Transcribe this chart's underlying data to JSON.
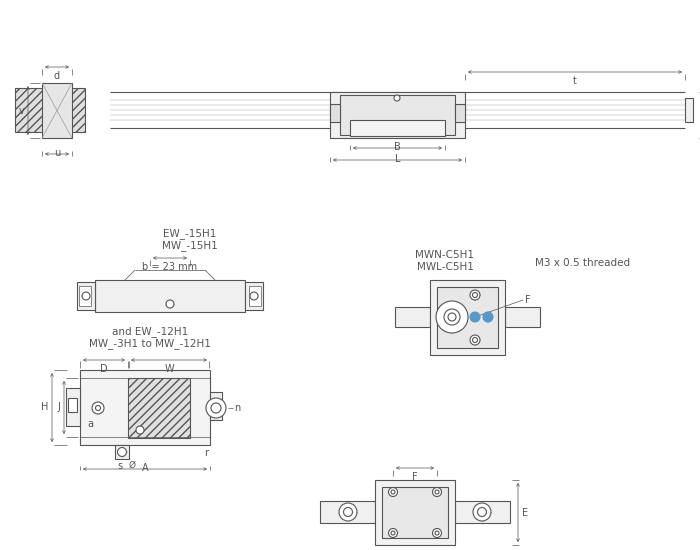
{
  "bg_color": "#ffffff",
  "lc": "#555555",
  "lc_dim": "#555555",
  "blue": "#5599cc",
  "title1": "MW_-3H1 to MW_-12H1",
  "title2": "and EW_-12H1",
  "title3": "MW_-15H1",
  "title4": "EW_-15H1",
  "title5": "MWL-C5H1",
  "title6": "MWN-C5H1",
  "title7": "M3 x 0.5 threaded",
  "fs": 7.5,
  "fs_dim": 7
}
